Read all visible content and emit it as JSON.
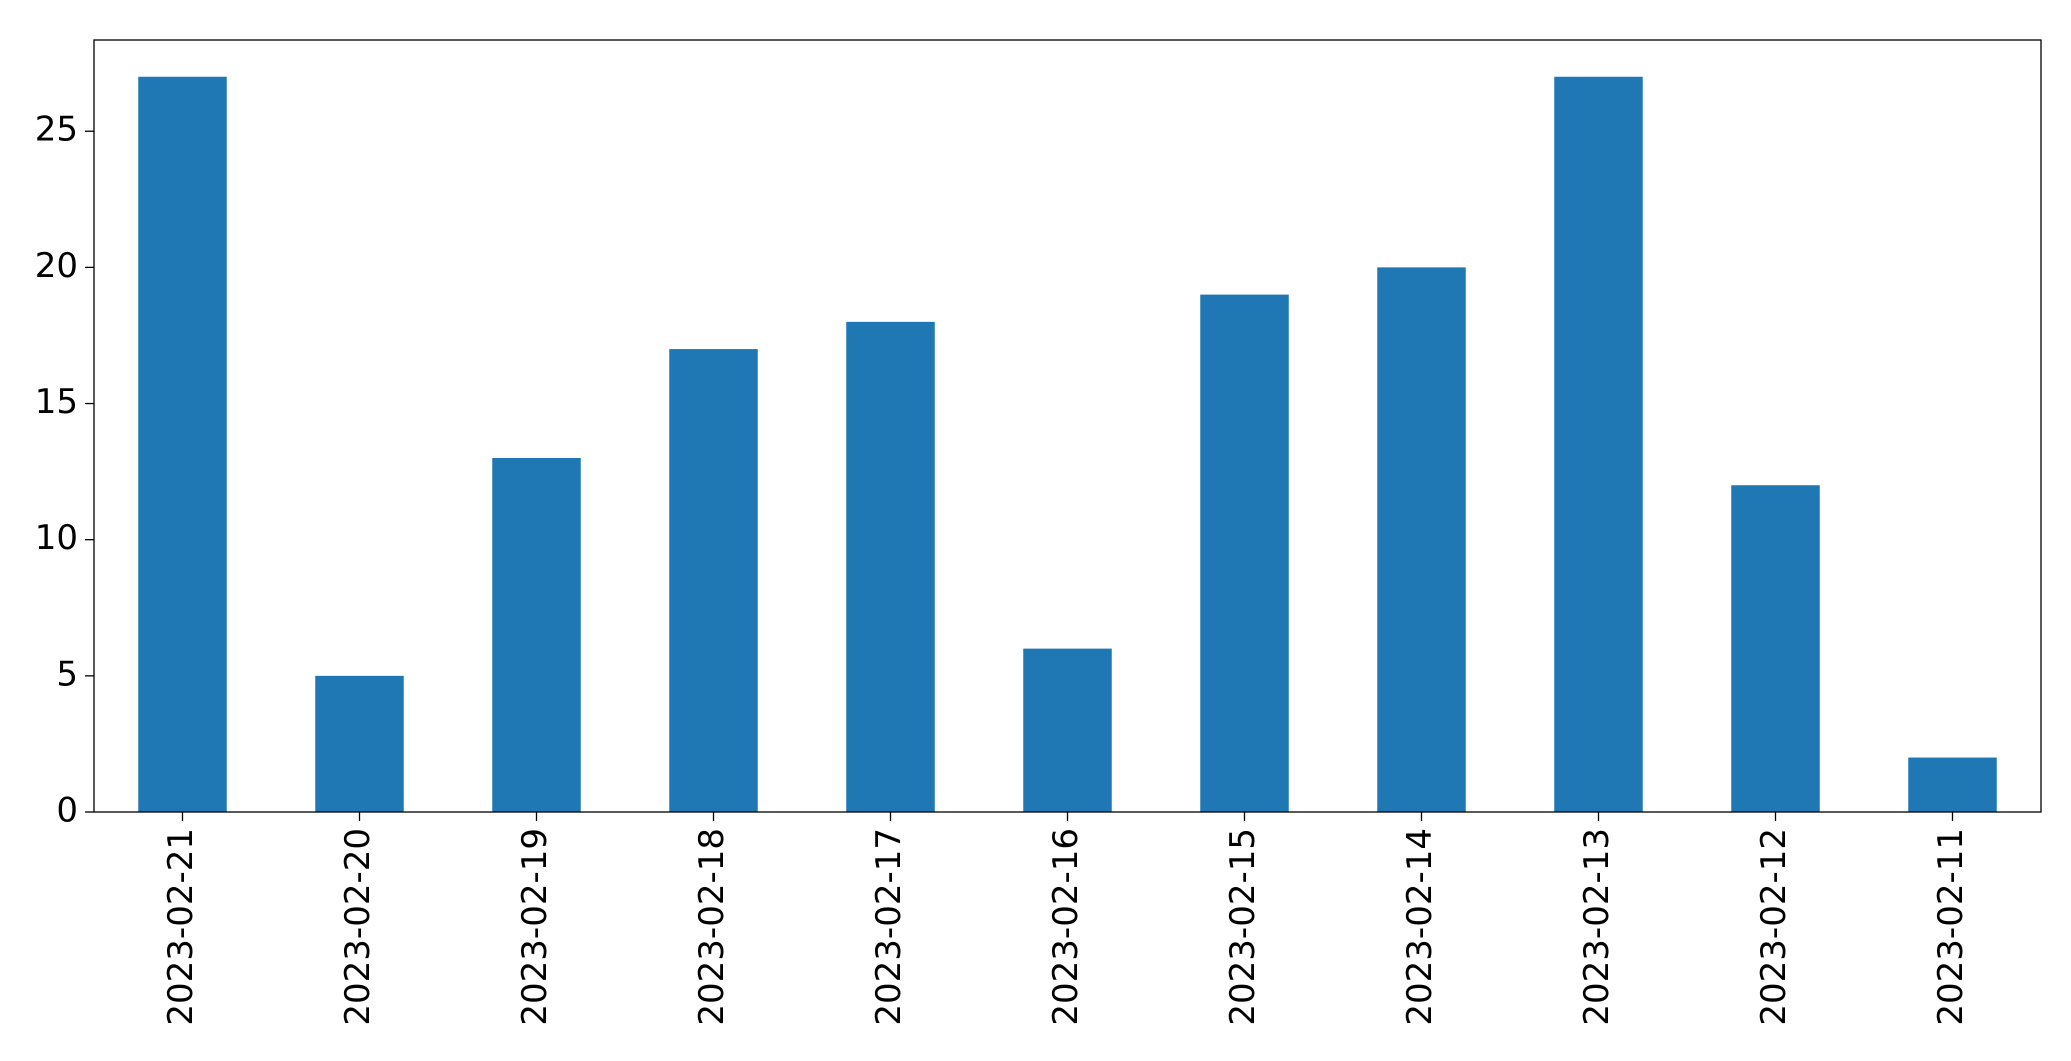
{
  "chart_data": {
    "type": "bar",
    "categories": [
      "2023-02-21",
      "2023-02-20",
      "2023-02-19",
      "2023-02-18",
      "2023-02-17",
      "2023-02-16",
      "2023-02-15",
      "2023-02-14",
      "2023-02-13",
      "2023-02-12",
      "2023-02-11"
    ],
    "values": [
      27,
      5,
      13,
      17,
      18,
      6,
      19,
      20,
      27,
      12,
      2
    ],
    "color": "#1f77b4",
    "ylim": [
      0,
      28.35
    ],
    "yticks": [
      0,
      5,
      10,
      15,
      20,
      25
    ],
    "grid": false
  }
}
